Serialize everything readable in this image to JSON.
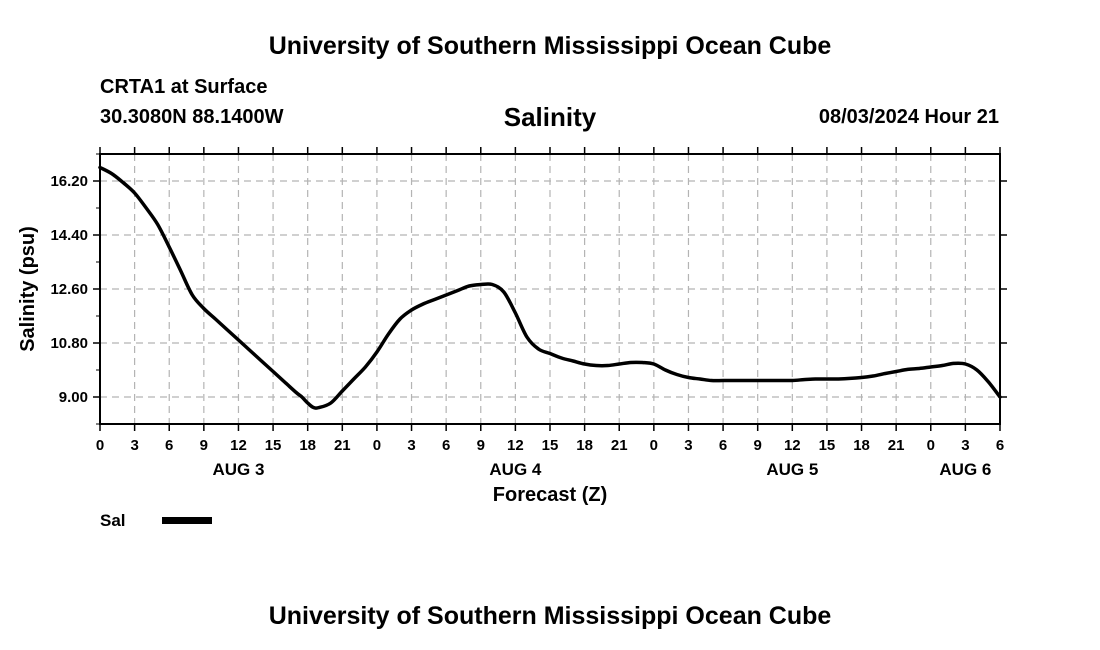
{
  "header": {
    "title": "University of Southern Mississippi Ocean Cube",
    "station": "CRTA1 at Surface",
    "coords": "30.3080N  88.1400W",
    "datetime": "08/03/2024 Hour 21"
  },
  "footer": {
    "title": "University of Southern Mississippi Ocean Cube"
  },
  "legend": {
    "label": "Sal"
  },
  "chart_data": {
    "type": "line",
    "title": "Salinity",
    "xlabel": "Forecast (Z)",
    "ylabel": "Salinity (psu)",
    "ylim": [
      8.1,
      17.1
    ],
    "yticks": [
      "16.20",
      "14.40",
      "12.60",
      "10.80",
      "9.00"
    ],
    "xlim_hours": [
      0,
      78
    ],
    "xtick_labels": [
      "0",
      "3",
      "6",
      "9",
      "12",
      "15",
      "18",
      "21",
      "0",
      "3",
      "6",
      "9",
      "12",
      "15",
      "18",
      "21",
      "0",
      "3",
      "6",
      "9",
      "12",
      "15",
      "18",
      "21",
      "0",
      "3",
      "6"
    ],
    "day_labels": [
      {
        "label": "AUG 3",
        "hour": 12
      },
      {
        "label": "AUG 4",
        "hour": 36
      },
      {
        "label": "AUG 5",
        "hour": 60
      },
      {
        "label": "AUG 6",
        "hour": 75
      }
    ],
    "grid": true,
    "line_color": "#000000",
    "series": [
      {
        "name": "Sal",
        "x": [
          0,
          1,
          2,
          3,
          4,
          5,
          6,
          7,
          8,
          9,
          10,
          11,
          12,
          13,
          14,
          15,
          16,
          17,
          17.5,
          18,
          18.5,
          19,
          20,
          21,
          22,
          23,
          24,
          25,
          26,
          27,
          28,
          29,
          30,
          31,
          32,
          33,
          34,
          35,
          36,
          37,
          38,
          39,
          40,
          41,
          42,
          43,
          44,
          45,
          46,
          47,
          48,
          49,
          50,
          51,
          52,
          53,
          54,
          55,
          56,
          57,
          58,
          59,
          60,
          61,
          62,
          63,
          64,
          65,
          66,
          67,
          68,
          69,
          70,
          71,
          72,
          73,
          74,
          75,
          76,
          77,
          78
        ],
        "y": [
          16.65,
          16.45,
          16.15,
          15.8,
          15.3,
          14.75,
          14.0,
          13.2,
          12.4,
          11.95,
          11.6,
          11.25,
          10.9,
          10.55,
          10.2,
          9.85,
          9.5,
          9.15,
          9.0,
          8.8,
          8.65,
          8.65,
          8.8,
          9.2,
          9.6,
          10.0,
          10.5,
          11.1,
          11.6,
          11.9,
          12.1,
          12.25,
          12.4,
          12.55,
          12.7,
          12.75,
          12.75,
          12.5,
          11.8,
          11.0,
          10.6,
          10.45,
          10.3,
          10.2,
          10.1,
          10.05,
          10.05,
          10.1,
          10.15,
          10.15,
          10.1,
          9.9,
          9.75,
          9.65,
          9.6,
          9.55,
          9.55,
          9.55,
          9.55,
          9.55,
          9.55,
          9.55,
          9.55,
          9.58,
          9.6,
          9.6,
          9.6,
          9.62,
          9.65,
          9.7,
          9.78,
          9.85,
          9.92,
          9.95,
          10.0,
          10.05,
          10.12,
          10.1,
          9.9,
          9.5,
          9.0
        ]
      }
    ]
  }
}
